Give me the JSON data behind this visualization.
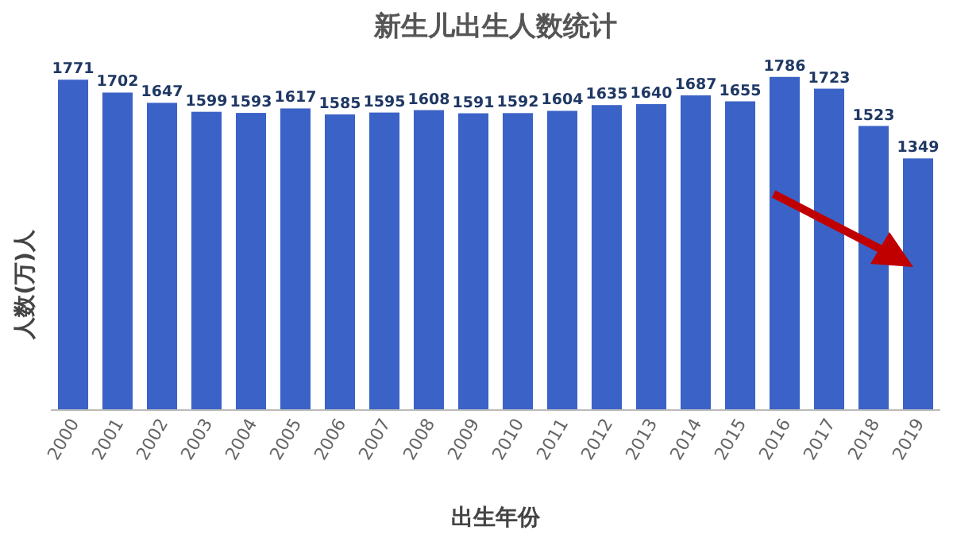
{
  "chart_data": {
    "type": "bar",
    "title": "新生儿出生人数统计",
    "xlabel": "出生年份",
    "ylabel": "人数(万)人",
    "categories": [
      "2000",
      "2001",
      "2002",
      "2003",
      "2004",
      "2005",
      "2006",
      "2007",
      "2008",
      "2009",
      "2010",
      "2011",
      "2012",
      "2013",
      "2014",
      "2015",
      "2016",
      "2017",
      "2018",
      "2019"
    ],
    "values": [
      1771,
      1702,
      1647,
      1599,
      1593,
      1617,
      1585,
      1595,
      1608,
      1591,
      1592,
      1604,
      1635,
      1640,
      1687,
      1655,
      1786,
      1723,
      1523,
      1349
    ],
    "color": "#3b62c6",
    "data_labels": true,
    "tick_labels": "x"
  }
}
